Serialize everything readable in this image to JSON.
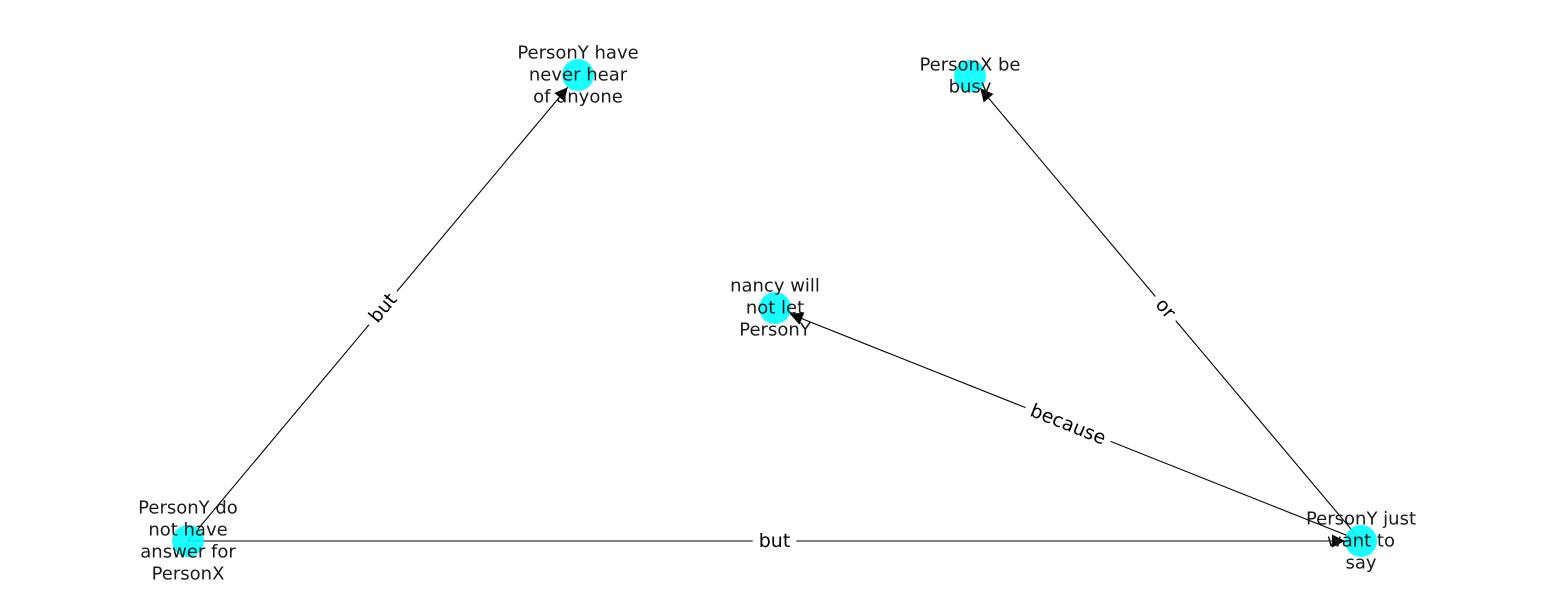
{
  "graph": {
    "node_color": "#00ffff",
    "edge_color": "#000000",
    "nodes": [
      {
        "id": "n1",
        "lines": [
          "PersonY have",
          "never hear",
          "of anyone"
        ]
      },
      {
        "id": "n2",
        "lines": [
          "PersonX be",
          "busy"
        ]
      },
      {
        "id": "n3",
        "lines": [
          "nancy will",
          "not let",
          "PersonY"
        ]
      },
      {
        "id": "n4",
        "lines": [
          "PersonY do",
          "not have",
          "answer for",
          "PersonX"
        ]
      },
      {
        "id": "n5",
        "lines": [
          "PersonY just",
          "want to",
          "say"
        ]
      }
    ],
    "edges": [
      {
        "id": "e1",
        "from": "n4",
        "to": "n1",
        "label": "but"
      },
      {
        "id": "e2",
        "from": "n4",
        "to": "n5",
        "label": "but"
      },
      {
        "id": "e3",
        "from": "n5",
        "to": "n3",
        "label": "because"
      },
      {
        "id": "e4",
        "from": "n5",
        "to": "n2",
        "label": "or"
      }
    ]
  }
}
